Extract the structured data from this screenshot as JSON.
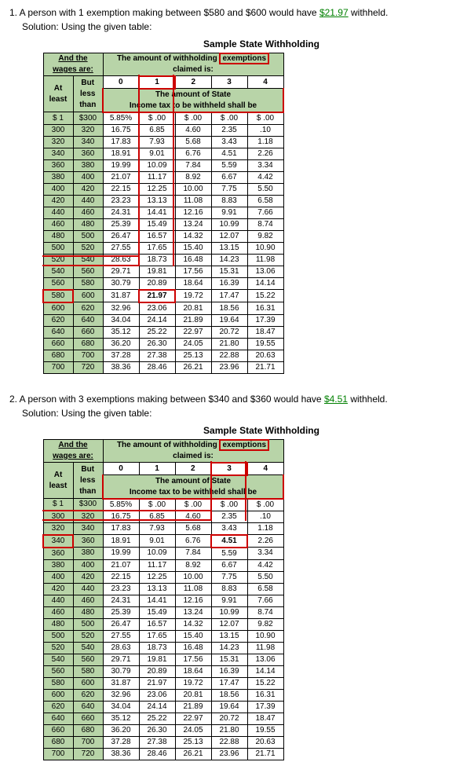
{
  "problems": [
    {
      "num": "1.",
      "text_before": "A person with 1 exemption making between $580 and $600 would have ",
      "amount": "$21.97",
      "text_after": " withheld.",
      "solution": "Solution: Using the given table:",
      "highlight_exemption_col": 1,
      "highlight_row_at": "580",
      "highlight_value": "21.97"
    },
    {
      "num": "2.",
      "text_before": "A person with 3 exemptions making between $340 and $360 would have ",
      "amount": "$4.51",
      "text_after": " withheld.",
      "solution": "Solution: Using the given table:",
      "highlight_exemption_col": 3,
      "highlight_row_at": "340",
      "highlight_value": "4.51"
    }
  ],
  "table": {
    "title": "Sample State Withholding",
    "hdr_andthe": "And the",
    "hdr_wages_are": "wages are:",
    "hdr_exemptions": "The amount of withholding exemptions claimed is:",
    "hdr_at_least": "At least",
    "hdr_but_less_than": "But less than",
    "hdr_amount_state": "The amount of State",
    "hdr_income_tax": "Income tax to be withheld shall be",
    "exemption_labels": [
      "0",
      "1",
      "2",
      "3",
      "4"
    ],
    "col0_header": "5.85%",
    "amount_col_headers": [
      "$  .00",
      "$  .00",
      "$  .00",
      "$  .00"
    ],
    "rows": [
      {
        "at": "$   1",
        "but": "$300",
        "c0": "5.85%",
        "c1": "$  .00",
        "c2": "$  .00",
        "c3": "$  .00",
        "c4": "$  .00"
      },
      {
        "at": "300",
        "but": "320",
        "c0": "16.75",
        "c1": "6.85",
        "c2": "4.60",
        "c3": "2.35",
        "c4": ".10"
      },
      {
        "at": "320",
        "but": "340",
        "c0": "17.83",
        "c1": "7.93",
        "c2": "5.68",
        "c3": "3.43",
        "c4": "1.18"
      },
      {
        "at": "340",
        "but": "360",
        "c0": "18.91",
        "c1": "9.01",
        "c2": "6.76",
        "c3": "4.51",
        "c4": "2.26"
      },
      {
        "at": "360",
        "but": "380",
        "c0": "19.99",
        "c1": "10.09",
        "c2": "7.84",
        "c3": "5.59",
        "c4": "3.34"
      },
      {
        "at": "380",
        "but": "400",
        "c0": "21.07",
        "c1": "11.17",
        "c2": "8.92",
        "c3": "6.67",
        "c4": "4.42"
      },
      {
        "at": "400",
        "but": "420",
        "c0": "22.15",
        "c1": "12.25",
        "c2": "10.00",
        "c3": "7.75",
        "c4": "5.50"
      },
      {
        "at": "420",
        "but": "440",
        "c0": "23.23",
        "c1": "13.13",
        "c2": "11.08",
        "c3": "8.83",
        "c4": "6.58"
      },
      {
        "at": "440",
        "but": "460",
        "c0": "24.31",
        "c1": "14.41",
        "c2": "12.16",
        "c3": "9.91",
        "c4": "7.66"
      },
      {
        "at": "460",
        "but": "480",
        "c0": "25.39",
        "c1": "15.49",
        "c2": "13.24",
        "c3": "10.99",
        "c4": "8.74"
      },
      {
        "at": "480",
        "but": "500",
        "c0": "26.47",
        "c1": "16.57",
        "c2": "14.32",
        "c3": "12.07",
        "c4": "9.82"
      },
      {
        "at": "500",
        "but": "520",
        "c0": "27.55",
        "c1": "17.65",
        "c2": "15.40",
        "c3": "13.15",
        "c4": "10.90"
      },
      {
        "at": "520",
        "but": "540",
        "c0": "28.63",
        "c1": "18.73",
        "c2": "16.48",
        "c3": "14.23",
        "c4": "11.98"
      },
      {
        "at": "540",
        "but": "560",
        "c0": "29.71",
        "c1": "19.81",
        "c2": "17.56",
        "c3": "15.31",
        "c4": "13.06"
      },
      {
        "at": "560",
        "but": "580",
        "c0": "30.79",
        "c1": "20.89",
        "c2": "18.64",
        "c3": "16.39",
        "c4": "14.14"
      },
      {
        "at": "580",
        "but": "600",
        "c0": "31.87",
        "c1": "21.97",
        "c2": "19.72",
        "c3": "17.47",
        "c4": "15.22"
      },
      {
        "at": "600",
        "but": "620",
        "c0": "32.96",
        "c1": "23.06",
        "c2": "20.81",
        "c3": "18.56",
        "c4": "16.31"
      },
      {
        "at": "620",
        "but": "640",
        "c0": "34.04",
        "c1": "24.14",
        "c2": "21.89",
        "c3": "19.64",
        "c4": "17.39"
      },
      {
        "at": "640",
        "but": "660",
        "c0": "35.12",
        "c1": "25.22",
        "c2": "22.97",
        "c3": "20.72",
        "c4": "18.47"
      },
      {
        "at": "660",
        "but": "680",
        "c0": "36.20",
        "c1": "26.30",
        "c2": "24.05",
        "c3": "21.80",
        "c4": "19.55"
      },
      {
        "at": "680",
        "but": "700",
        "c0": "37.28",
        "c1": "27.38",
        "c2": "25.13",
        "c3": "22.88",
        "c4": "20.63"
      },
      {
        "at": "700",
        "but": "720",
        "c0": "38.36",
        "c1": "28.46",
        "c2": "26.21",
        "c3": "23.96",
        "c4": "21.71"
      }
    ],
    "colors": {
      "header_green": "#b8d4a8",
      "highlight_red": "#c00000",
      "answer_green": "#008000"
    }
  }
}
